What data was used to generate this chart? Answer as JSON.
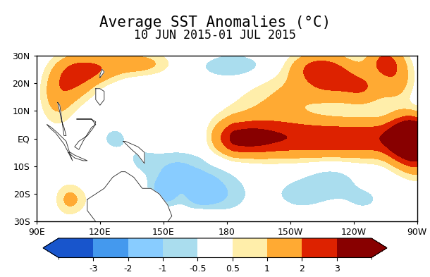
{
  "title": "Average SST Anomalies (°C)",
  "subtitle": "10 JUN 2015-01 JUL 2015",
  "lon_min": 90,
  "lon_max": 270,
  "lat_min": -30,
  "lat_max": 30,
  "xticks": [
    90,
    120,
    150,
    180,
    210,
    240,
    270
  ],
  "xticklabels": [
    "90E",
    "120E",
    "150E",
    "180",
    "150W",
    "120W",
    "90W"
  ],
  "yticks": [
    -30,
    -20,
    -10,
    0,
    10,
    20,
    30
  ],
  "yticklabels": [
    "30S",
    "20S",
    "10S",
    "EQ",
    "10N",
    "20N",
    "30N"
  ],
  "colorbar_levels": [
    -4,
    -3,
    -2,
    -1,
    -0.5,
    0.5,
    1,
    2,
    3,
    4
  ],
  "colorbar_ticks": [
    -3,
    -2,
    -1,
    -0.5,
    0.5,
    1,
    2,
    3
  ],
  "colorbar_ticklabels": [
    "-3",
    "-2",
    "-1",
    "-0.5",
    "0.5",
    "1",
    "2",
    "3"
  ],
  "colorbar_colors": [
    "#1855CC",
    "#4499EE",
    "#88CCFF",
    "#AADDEE",
    "#FFFFFF",
    "#FFEEAA",
    "#FFAA33",
    "#DD2200",
    "#880000"
  ],
  "title_fontsize": 15,
  "subtitle_fontsize": 12,
  "tick_fontsize": 9,
  "colorbar_fontsize": 9,
  "land_color": "#FFFFFF",
  "coastline_color": "#222222",
  "coastline_lw": 0.6,
  "fig_width": 6.1,
  "fig_height": 3.93,
  "dpi": 100
}
